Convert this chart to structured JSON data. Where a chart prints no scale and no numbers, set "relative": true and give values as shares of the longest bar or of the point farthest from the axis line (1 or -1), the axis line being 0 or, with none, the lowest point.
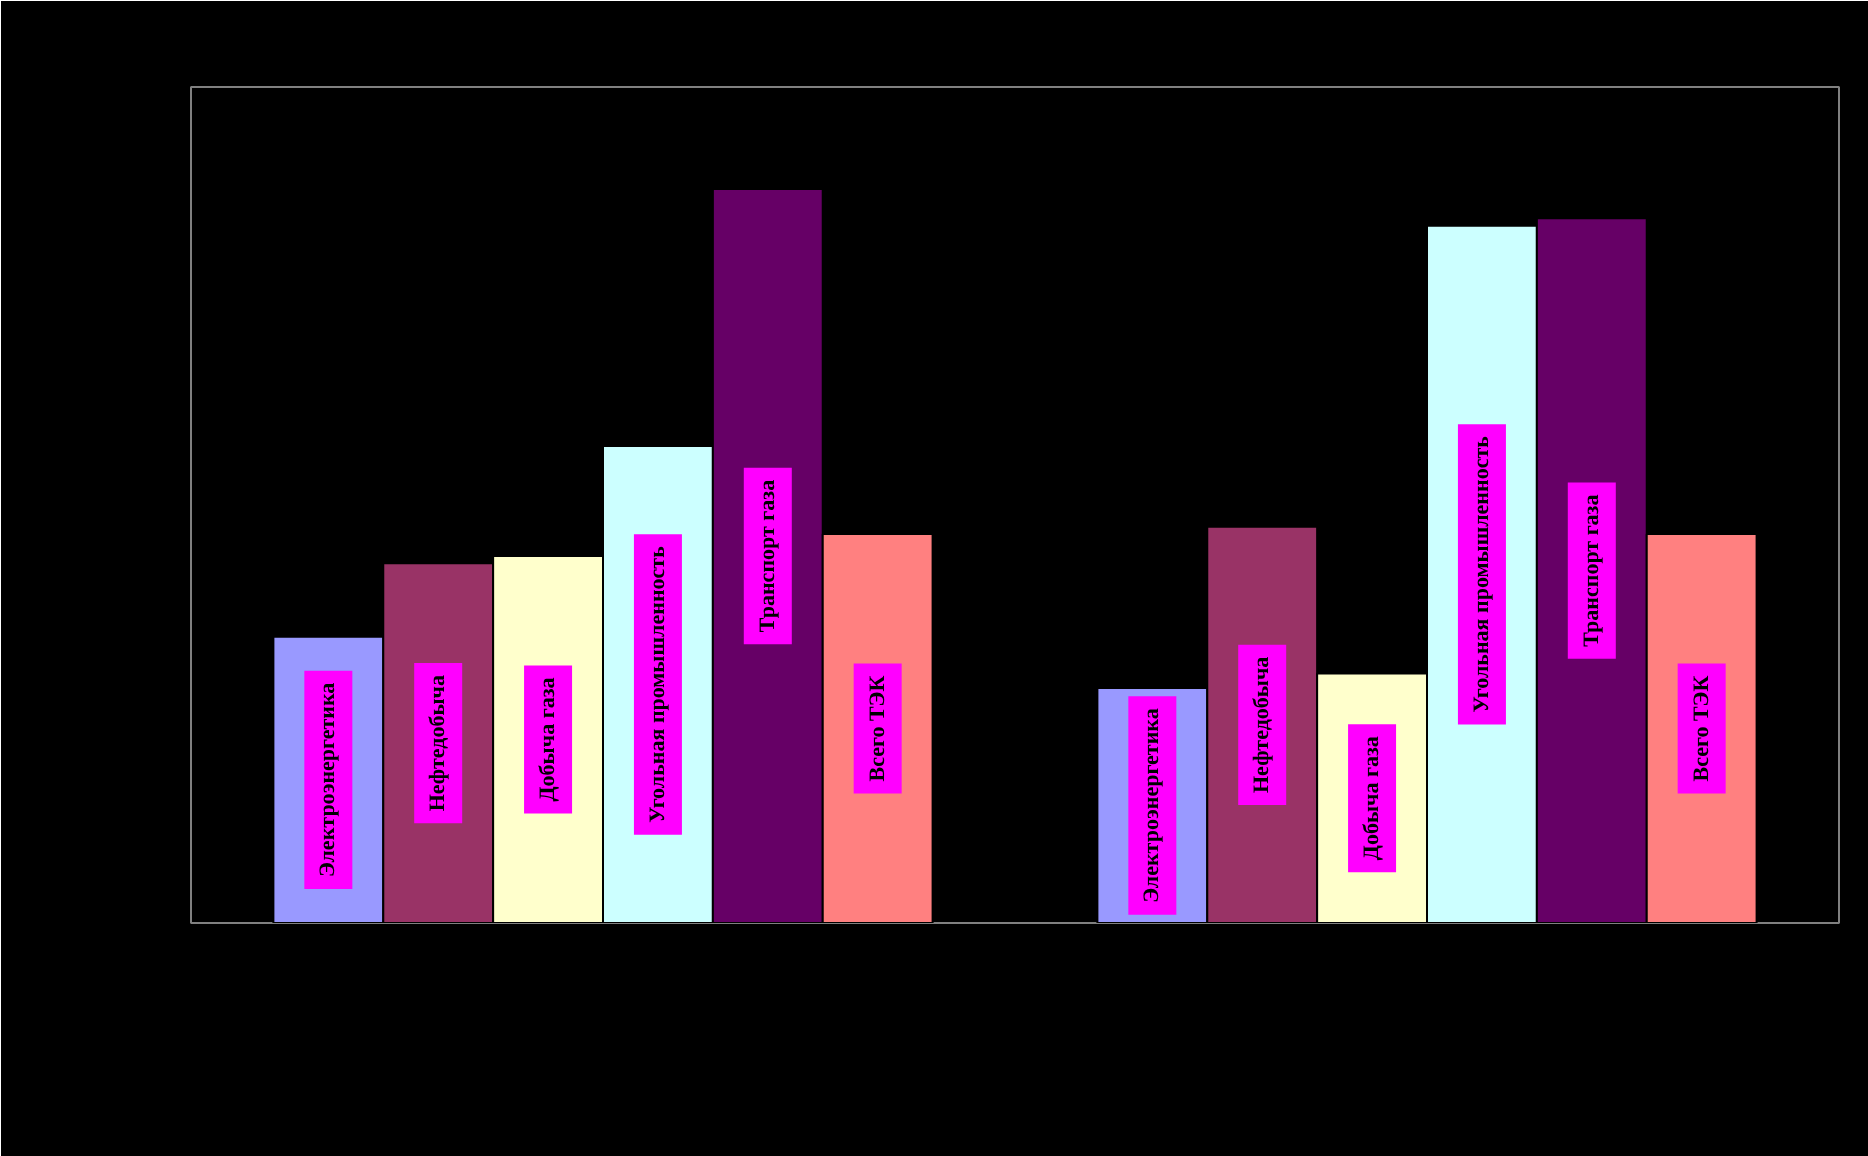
{
  "chart_data": {
    "type": "bar",
    "relative": true,
    "categories": [
      null,
      null
    ],
    "series": [
      {
        "name": "Электроэнергетика",
        "color": "#9999ff",
        "values": [
          0.39,
          0.32
        ]
      },
      {
        "name": "Нефтедобыча",
        "color": "#993366",
        "values": [
          0.49,
          0.54
        ]
      },
      {
        "name": "Добыча газа",
        "color": "#ffffcc",
        "values": [
          0.5,
          0.34
        ]
      },
      {
        "name": "Угольная промышленность",
        "color": "#ccffff",
        "values": [
          0.65,
          0.95
        ]
      },
      {
        "name": "Транспорт газа",
        "color": "#660066",
        "values": [
          1,
          0.96
        ]
      },
      {
        "name": "Всего ТЭК",
        "color": "#ff8080",
        "values": [
          0.53,
          0.53
        ]
      }
    ],
    "legend": false,
    "grid": false
  }
}
